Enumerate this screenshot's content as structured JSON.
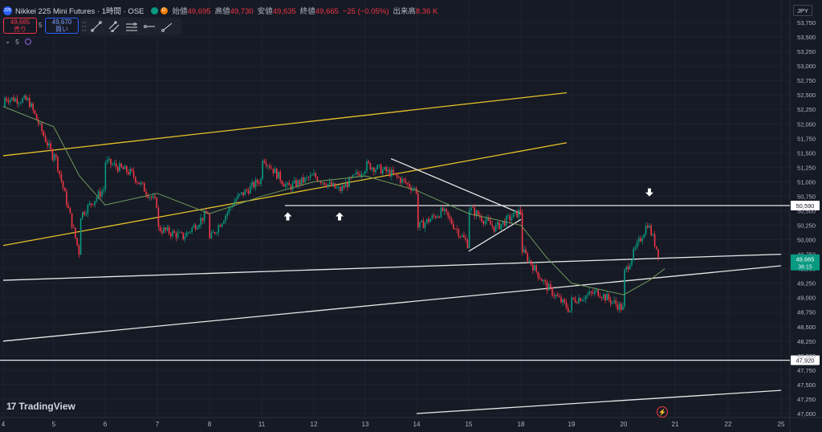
{
  "header": {
    "title": "Nikkei 225 Mini Futures · 1時間 · OSE",
    "logo_text": "225",
    "badge_d": "D",
    "ohlc": [
      {
        "label": "始値",
        "value": "49,695"
      },
      {
        "label": "高値",
        "value": "49,730"
      },
      {
        "label": "安値",
        "value": "49,635"
      },
      {
        "label": "終値",
        "value": "49,665"
      },
      {
        "label": "",
        "value": "−25 (−0.05%)"
      },
      {
        "label": "出来高",
        "value": "8.36 K"
      }
    ]
  },
  "trade": {
    "sell_price": "49,665",
    "sell_label": "売り",
    "spread": "5",
    "buy_price": "49,670",
    "buy_label": "買い"
  },
  "indicator": {
    "value": "5"
  },
  "toolbar": {
    "tools": [
      "trend-line-icon",
      "parallel-channel-icon",
      "horizontal-lines-icon",
      "horizontal-ray-icon",
      "ray-icon"
    ]
  },
  "currency": "JPY",
  "brand": {
    "name": "TradingView"
  },
  "colors": {
    "background": "#161a25",
    "up": "#089981",
    "down": "#f23645",
    "ma": "#6f9a5a",
    "channel": "#e6c229",
    "lines": "#e8e8e8",
    "last_price_tag": "#089981"
  },
  "chart_data": {
    "type": "candlestick",
    "instrument": "Nikkei 225 Mini Futures",
    "timeframe": "1時間",
    "x_ticks": [
      "4",
      "5",
      "6",
      "7",
      "8",
      "11",
      "12",
      "13",
      "14",
      "15",
      "18",
      "19",
      "20",
      "21",
      "22",
      "25"
    ],
    "y_ticks": [
      "53,750",
      "53,500",
      "53,250",
      "53,000",
      "52,750",
      "52,500",
      "52,250",
      "52,000",
      "51,750",
      "51,500",
      "51,250",
      "51,000",
      "50,750",
      "50,500",
      "50,250",
      "50,000",
      "49,750",
      "49,500",
      "49,250",
      "49,000",
      "48,750",
      "48,500",
      "48,250",
      "48,000",
      "47,750",
      "47,500",
      "47,250",
      "47,000"
    ],
    "ylim": [
      46950,
      53950
    ],
    "price_path": [
      [
        "4",
        52300
      ],
      [
        "4",
        52450
      ],
      [
        "4.5",
        52400
      ],
      [
        "5",
        51400
      ],
      [
        "5",
        51550
      ],
      [
        "5.5",
        49750
      ],
      [
        "5.5",
        50400
      ],
      [
        "6",
        50900
      ],
      [
        "6",
        51350
      ],
      [
        "6.5",
        51150
      ],
      [
        "7",
        50600
      ],
      [
        "7",
        50200
      ],
      [
        "7.5",
        50050
      ],
      [
        "8",
        50500
      ],
      [
        "8",
        50000
      ],
      [
        "8.5",
        50700
      ],
      [
        "11",
        51050
      ],
      [
        "11",
        51450
      ],
      [
        "11.5",
        50900
      ],
      [
        "12",
        51100
      ],
      [
        "12.5",
        50850
      ],
      [
        "13",
        51250
      ],
      [
        "13",
        51300
      ],
      [
        "13.5",
        51150
      ],
      [
        "14",
        50850
      ],
      [
        "14",
        50200
      ],
      [
        "14.5",
        50500
      ],
      [
        "15",
        49900
      ],
      [
        "15",
        50550
      ],
      [
        "15.5",
        50200
      ],
      [
        "18",
        50500
      ],
      [
        "18",
        49850
      ],
      [
        "18.5",
        49200
      ],
      [
        "19",
        48750
      ],
      [
        "19",
        48950
      ],
      [
        "19.5",
        49100
      ],
      [
        "20",
        48800
      ],
      [
        "20",
        49400
      ],
      [
        "20.5",
        50350
      ],
      [
        "20.5",
        50650
      ],
      [
        "20.5",
        50200
      ],
      [
        "20.7",
        49700
      ]
    ],
    "moving_average": [
      [
        "4",
        52300
      ],
      [
        "5",
        51950
      ],
      [
        "5.5",
        51100
      ],
      [
        "6",
        50600
      ],
      [
        "7",
        50800
      ],
      [
        "8",
        50450
      ],
      [
        "11",
        50750
      ],
      [
        "12",
        51000
      ],
      [
        "13",
        51100
      ],
      [
        "14",
        50850
      ],
      [
        "15",
        50450
      ],
      [
        "18",
        50250
      ],
      [
        "18.5",
        49700
      ],
      [
        "19",
        49250
      ],
      [
        "20",
        49050
      ],
      [
        "20.5",
        49300
      ],
      [
        "20.8",
        49500
      ]
    ],
    "horizontal_levels": [
      {
        "price": 50590,
        "label": "50,590"
      },
      {
        "price": 47920,
        "label": "47,920"
      }
    ],
    "trend_lines": [
      {
        "kind": "channel-upper",
        "from": [
          "4",
          51450
        ],
        "to": [
          "25",
          52950
        ]
      },
      {
        "kind": "channel-lower",
        "from": [
          "4",
          49900
        ],
        "to": [
          "25",
          52350
        ]
      },
      {
        "kind": "support",
        "from": [
          "4",
          49300
        ],
        "to": [
          "25",
          49750
        ]
      },
      {
        "kind": "support",
        "from": [
          "4",
          48250
        ],
        "to": [
          "25",
          49550
        ]
      },
      {
        "kind": "support",
        "from": [
          "14",
          47000
        ],
        "to": [
          "25",
          47400
        ]
      },
      {
        "kind": "resistance",
        "from": [
          "13.5",
          51400
        ],
        "to": [
          "18",
          50450
        ]
      },
      {
        "kind": "triangle-base",
        "from": [
          "15",
          49800
        ],
        "to": [
          "18",
          50350
        ]
      }
    ],
    "markers": [
      {
        "direction": "up",
        "at": [
          "11.5",
          50500
        ]
      },
      {
        "direction": "up",
        "at": [
          "12.5",
          50500
        ]
      },
      {
        "direction": "down",
        "at": [
          "20.5",
          50720
        ]
      }
    ],
    "last_price": {
      "value": "49,665",
      "countdown": "36:15"
    }
  }
}
